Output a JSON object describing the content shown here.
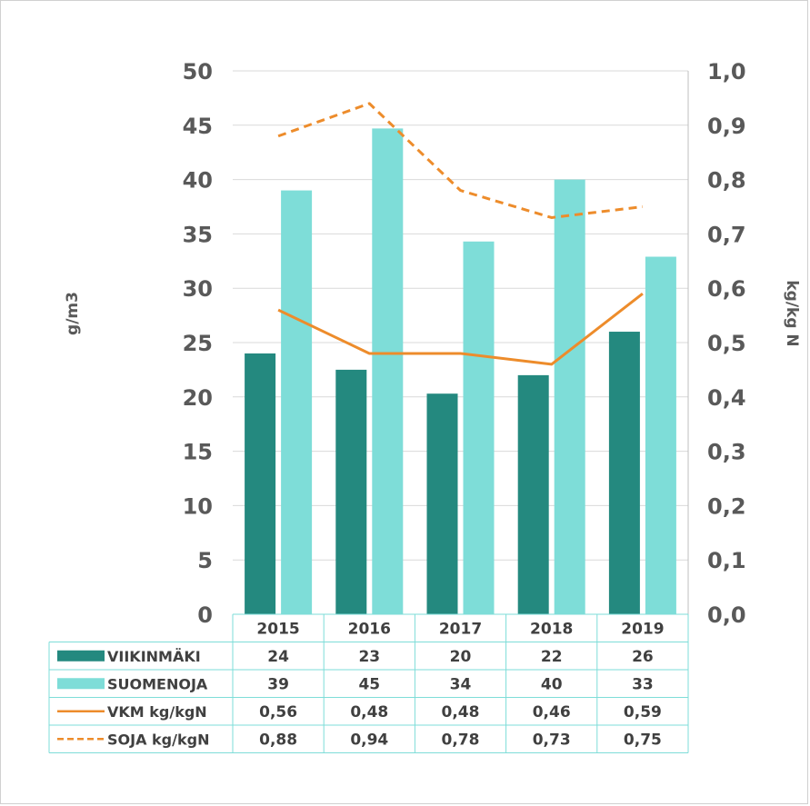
{
  "chart_data": {
    "type": "bar",
    "categories": [
      "2015",
      "2016",
      "2017",
      "2018",
      "2019"
    ],
    "series": [
      {
        "name": "VIIKINMÄKI",
        "kind": "bar",
        "axis": "left",
        "color": "#24897F",
        "values": [
          24,
          22.5,
          20.3,
          22,
          26
        ],
        "labels": [
          "24",
          "23",
          "20",
          "22",
          "26"
        ]
      },
      {
        "name": "SUOMENOJA",
        "kind": "bar",
        "axis": "left",
        "color": "#7EDDD8",
        "values": [
          39,
          44.7,
          34.3,
          40,
          32.9
        ],
        "labels": [
          "39",
          "45",
          "34",
          "40",
          "33"
        ]
      },
      {
        "name": "VKM kg/kgN",
        "kind": "line",
        "axis": "right",
        "dash": false,
        "color": "#ED8C2B",
        "values": [
          0.56,
          0.48,
          0.48,
          0.46,
          0.59
        ],
        "labels": [
          "0,56",
          "0,48",
          "0,48",
          "0,46",
          "0,59"
        ]
      },
      {
        "name": "SOJA kg/kgN",
        "kind": "line",
        "axis": "right",
        "dash": true,
        "color": "#ED8C2B",
        "values": [
          0.88,
          0.94,
          0.78,
          0.73,
          0.75
        ],
        "labels": [
          "0,88",
          "0,94",
          "0,78",
          "0,73",
          "0,75"
        ]
      }
    ],
    "ylabel": "g/m3",
    "y2label": "kg/kg N",
    "ylim": [
      0,
      50
    ],
    "y2lim": [
      0,
      1.0
    ],
    "yticks": [
      "0",
      "5",
      "10",
      "15",
      "20",
      "25",
      "30",
      "35",
      "40",
      "45",
      "50"
    ],
    "y2ticks": [
      "0,0",
      "0,1",
      "0,2",
      "0,3",
      "0,4",
      "0,5",
      "0,6",
      "0,7",
      "0,8",
      "0,9",
      "1,0"
    ],
    "grid": true,
    "legend": "data table below chart"
  }
}
